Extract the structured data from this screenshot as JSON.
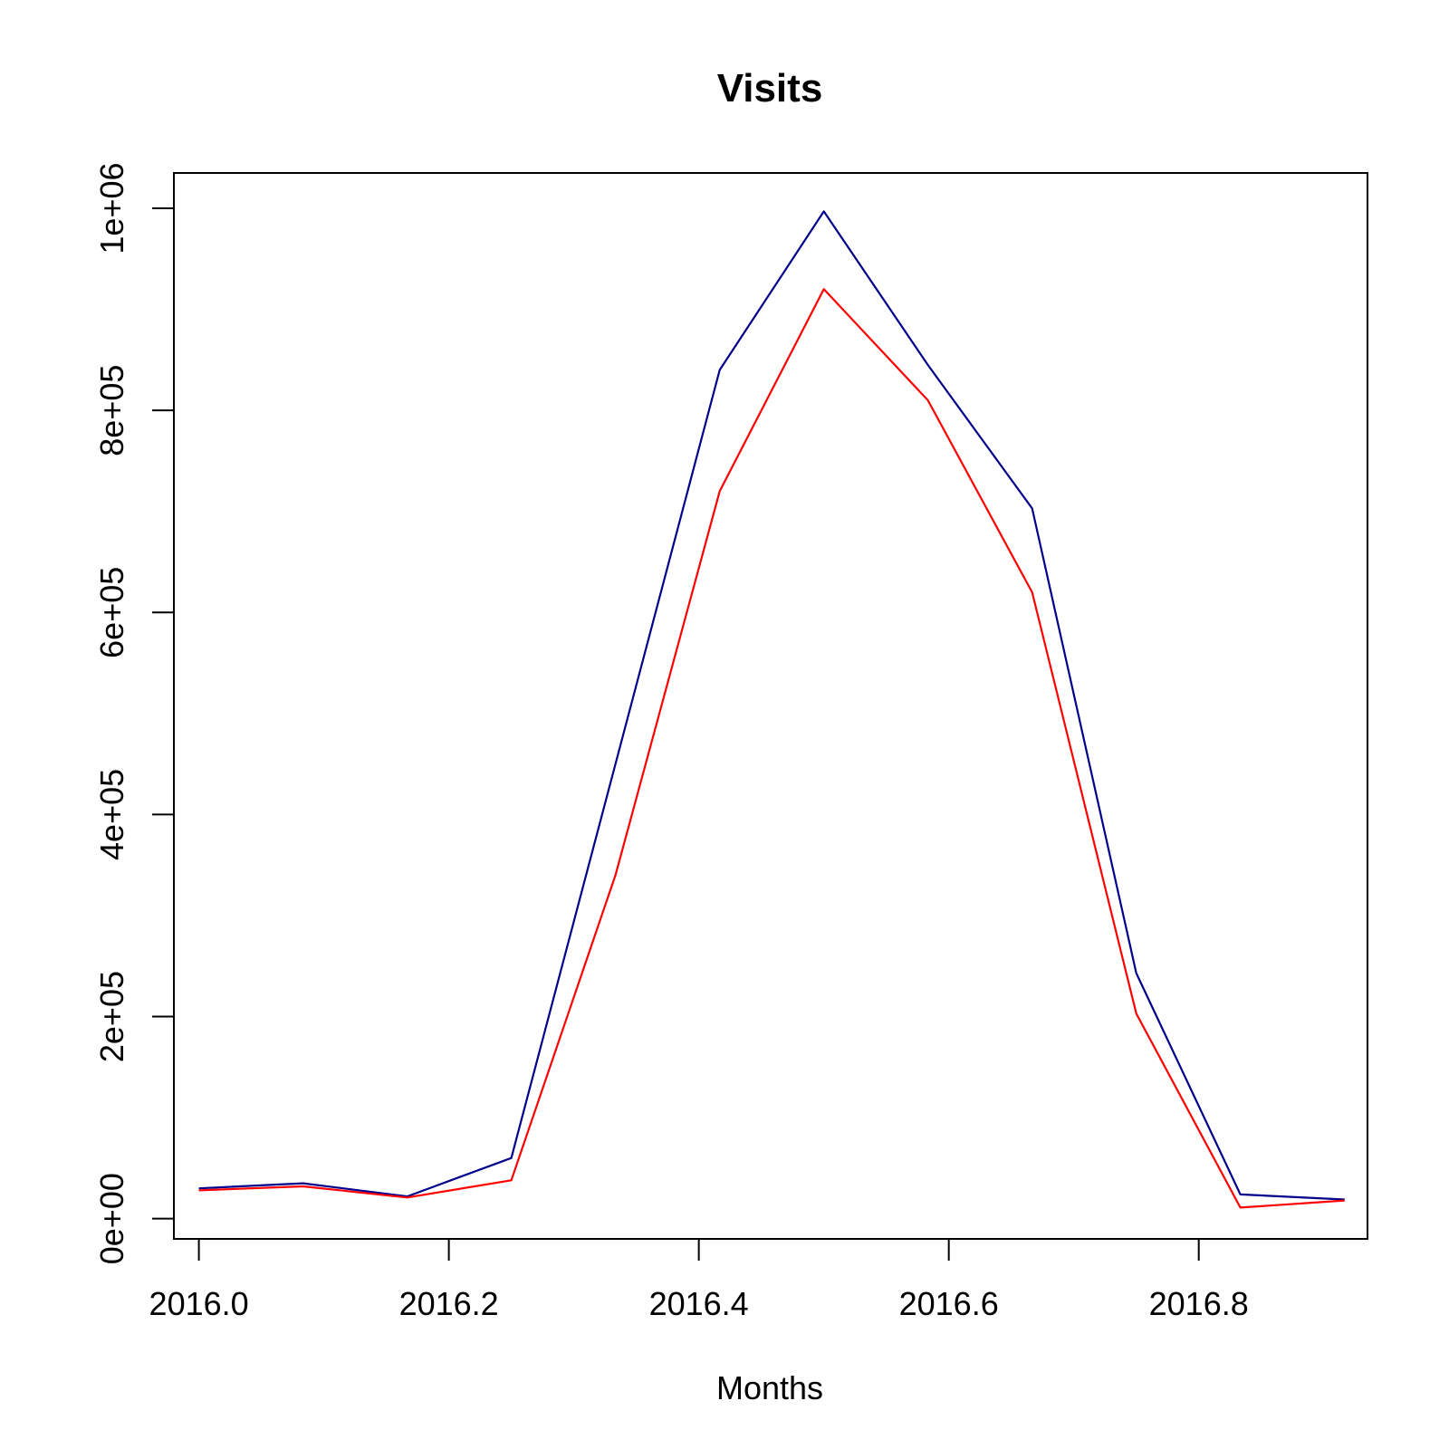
{
  "chart_data": {
    "type": "line",
    "title": "Visits",
    "xlabel": "Months",
    "ylabel": "",
    "xlim": [
      2015.98,
      2016.935
    ],
    "ylim": [
      -20000,
      1035000
    ],
    "x_ticks": [
      2016.0,
      2016.2,
      2016.4,
      2016.6,
      2016.8
    ],
    "x_tick_labels": [
      "2016.0",
      "2016.2",
      "2016.4",
      "2016.6",
      "2016.8"
    ],
    "y_ticks": [
      0,
      200000,
      400000,
      600000,
      800000,
      1000000
    ],
    "y_tick_labels": [
      "0e+00",
      "2e+05",
      "4e+05",
      "6e+05",
      "8e+05",
      "1e+06"
    ],
    "grid": false,
    "x": [
      2016.0,
      2016.0833,
      2016.1667,
      2016.25,
      2016.3333,
      2016.4167,
      2016.5,
      2016.5833,
      2016.6667,
      2016.75,
      2016.8333,
      2016.9167
    ],
    "series": [
      {
        "color": "#00008B",
        "values": [
          30000,
          35000,
          22000,
          60000,
          450000,
          840000,
          997000,
          845000,
          703000,
          243000,
          24000,
          19000
        ]
      },
      {
        "color": "#FF0000",
        "values": [
          28000,
          32000,
          21000,
          38000,
          340000,
          720000,
          920000,
          810000,
          620000,
          203000,
          11000,
          18000
        ]
      }
    ]
  }
}
